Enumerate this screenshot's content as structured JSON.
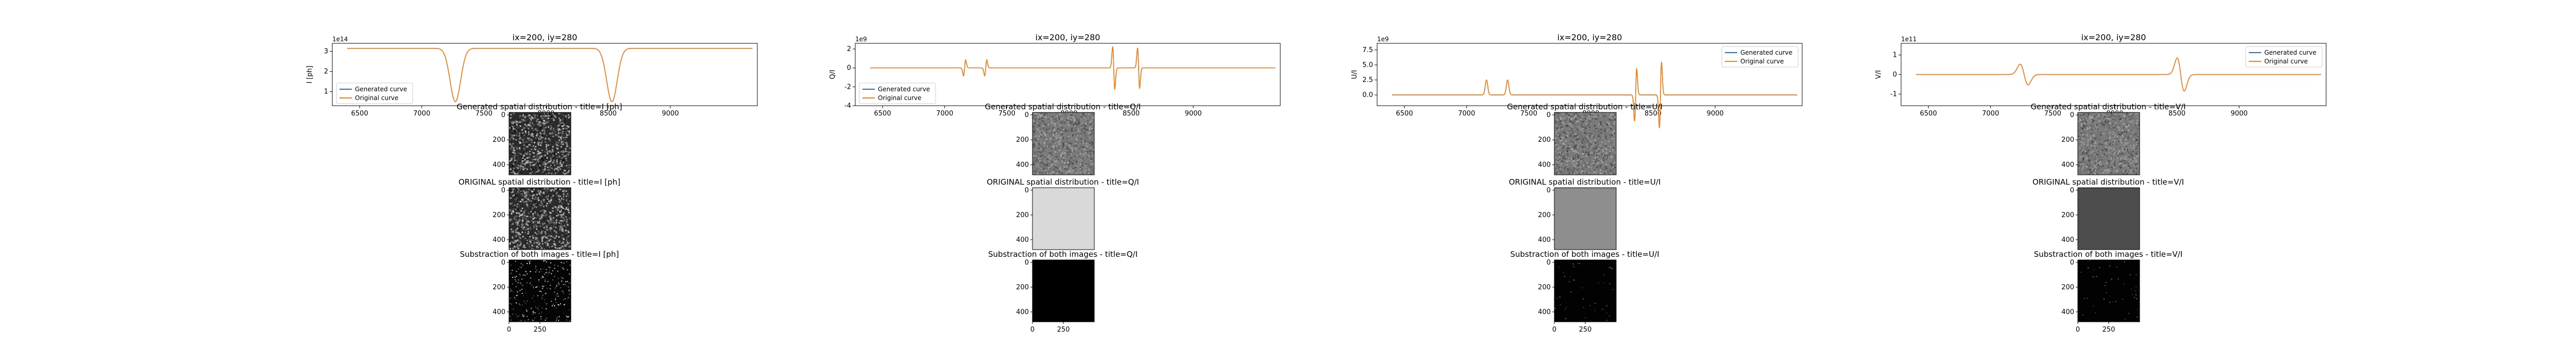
{
  "colors": {
    "generated": "#1f77b4",
    "original": "#ff7f0e",
    "axes": "#000000",
    "background": "#ffffff"
  },
  "legend": {
    "generated_label": "Generated curve",
    "original_label": "Original curve"
  },
  "chart_data": [
    {
      "type": "line",
      "title": "ix=200, iy=280",
      "ylabel": "I [ph]",
      "exponent_label": "1e14",
      "xlim": [
        6280,
        9700
      ],
      "ylim": [
        0.3,
        3.4
      ],
      "xticks": [
        6500,
        7000,
        7500,
        8000,
        8500,
        9000
      ],
      "yticks": [
        1,
        2,
        3
      ],
      "legend_position": "lower-left",
      "kind": "absorption",
      "baseline": 3.15,
      "lines": [
        {
          "center": 7270,
          "depth": 2.65,
          "width": 60
        },
        {
          "center": 8530,
          "depth": 2.65,
          "width": 60
        }
      ],
      "series": [
        {
          "name": "Generated curve",
          "note_color": "generated"
        },
        {
          "name": "Original curve",
          "note_color": "original"
        }
      ]
    },
    {
      "type": "line",
      "title": "ix=200, iy=280",
      "ylabel": "Q/I",
      "exponent_label": "1e9",
      "xlim": [
        6280,
        9700
      ],
      "ylim": [
        -4,
        2.6
      ],
      "xticks": [
        6500,
        7000,
        7500,
        8000,
        8500,
        9000
      ],
      "yticks": [
        -4,
        -2,
        0,
        2
      ],
      "legend_position": "lower-left",
      "kind": "polarization",
      "baseline": 0,
      "features": [
        {
          "center": 7160,
          "amp": 1.2,
          "width": 12,
          "shape": "dip-peak"
        },
        {
          "center": 7330,
          "amp": 1.2,
          "width": 12,
          "shape": "dip-peak"
        },
        {
          "center": 8360,
          "amp": 3.2,
          "width": 12,
          "shape": "peak-dip"
        },
        {
          "center": 8560,
          "amp": 3.0,
          "width": 12,
          "shape": "peak-dip"
        }
      ],
      "series": [
        {
          "name": "Generated curve",
          "note_color": "generated"
        },
        {
          "name": "Original curve",
          "note_color": "original"
        }
      ]
    },
    {
      "type": "line",
      "title": "ix=200, iy=280",
      "ylabel": "U/I",
      "exponent_label": "1e9",
      "xlim": [
        6280,
        9700
      ],
      "ylim": [
        -1.8,
        8.6
      ],
      "xticks": [
        6500,
        7000,
        7500,
        8000,
        8500,
        9000
      ],
      "yticks": [
        0.0,
        2.5,
        5.0,
        7.5
      ],
      "legend_position": "upper-right",
      "kind": "polarization",
      "baseline": 0,
      "features": [
        {
          "center": 7160,
          "amp": 2.5,
          "width": 14,
          "shape": "peak"
        },
        {
          "center": 7330,
          "amp": 2.5,
          "width": 14,
          "shape": "peak"
        },
        {
          "center": 8360,
          "amp": 6.2,
          "width": 12,
          "shape": "dip-peak"
        },
        {
          "center": 8560,
          "amp": 7.8,
          "width": 12,
          "shape": "dip-peak"
        }
      ],
      "series": [
        {
          "name": "Generated curve",
          "note_color": "generated"
        },
        {
          "name": "Original curve",
          "note_color": "original"
        }
      ]
    },
    {
      "type": "line",
      "title": "ix=200, iy=280",
      "ylabel": "V/I",
      "exponent_label": "1e11",
      "xlim": [
        6280,
        9700
      ],
      "ylim": [
        -1.6,
        1.6
      ],
      "xticks": [
        6500,
        7000,
        7500,
        8000,
        8500,
        9000
      ],
      "yticks": [
        -1,
        0,
        1
      ],
      "legend_position": "upper-right",
      "kind": "polarization",
      "baseline": 0,
      "features": [
        {
          "center": 7270,
          "amp": 0.75,
          "width": 45,
          "shape": "peak-dip"
        },
        {
          "center": 8530,
          "amp": 1.2,
          "width": 40,
          "shape": "peak-dip"
        }
      ],
      "series": [
        {
          "name": "Generated curve",
          "note_color": "generated"
        },
        {
          "name": "Original curve",
          "note_color": "original"
        }
      ]
    }
  ],
  "image_panels": [
    {
      "generated_title": "Generated spatial distribution - title=I [ph]",
      "original_title": "ORIGINAL spatial distribution - title=I [ph]",
      "subtraction_title": "Substraction of both images - title=I [ph]",
      "generated_tone": "dark-noise",
      "original_tone": "dark-noise",
      "subtraction_tone": "black-speckle"
    },
    {
      "generated_title": "Generated spatial distribution - title=Q/I",
      "original_title": "ORIGINAL spatial distribution - title=Q/I",
      "subtraction_title": "Substraction of both images - title=Q/I",
      "generated_tone": "gray-noise",
      "original_tone": "light-gray",
      "subtraction_tone": "black"
    },
    {
      "generated_title": "Generated spatial distribution - title=U/I",
      "original_title": "ORIGINAL spatial distribution - title=U/I",
      "subtraction_title": "Substraction of both images - title=U/I",
      "generated_tone": "gray-noise",
      "original_tone": "mid-gray",
      "subtraction_tone": "black-faint"
    },
    {
      "generated_title": "Generated spatial distribution - title=V/I",
      "original_title": "ORIGINAL spatial distribution - title=V/I",
      "subtraction_title": "Substraction of both images - title=V/I",
      "generated_tone": "gray-noise",
      "original_tone": "dark-gray",
      "subtraction_tone": "black-faint"
    }
  ],
  "image_axis": {
    "yticks": [
      "0",
      "200",
      "400"
    ],
    "xticks": [
      "0",
      "250"
    ]
  }
}
